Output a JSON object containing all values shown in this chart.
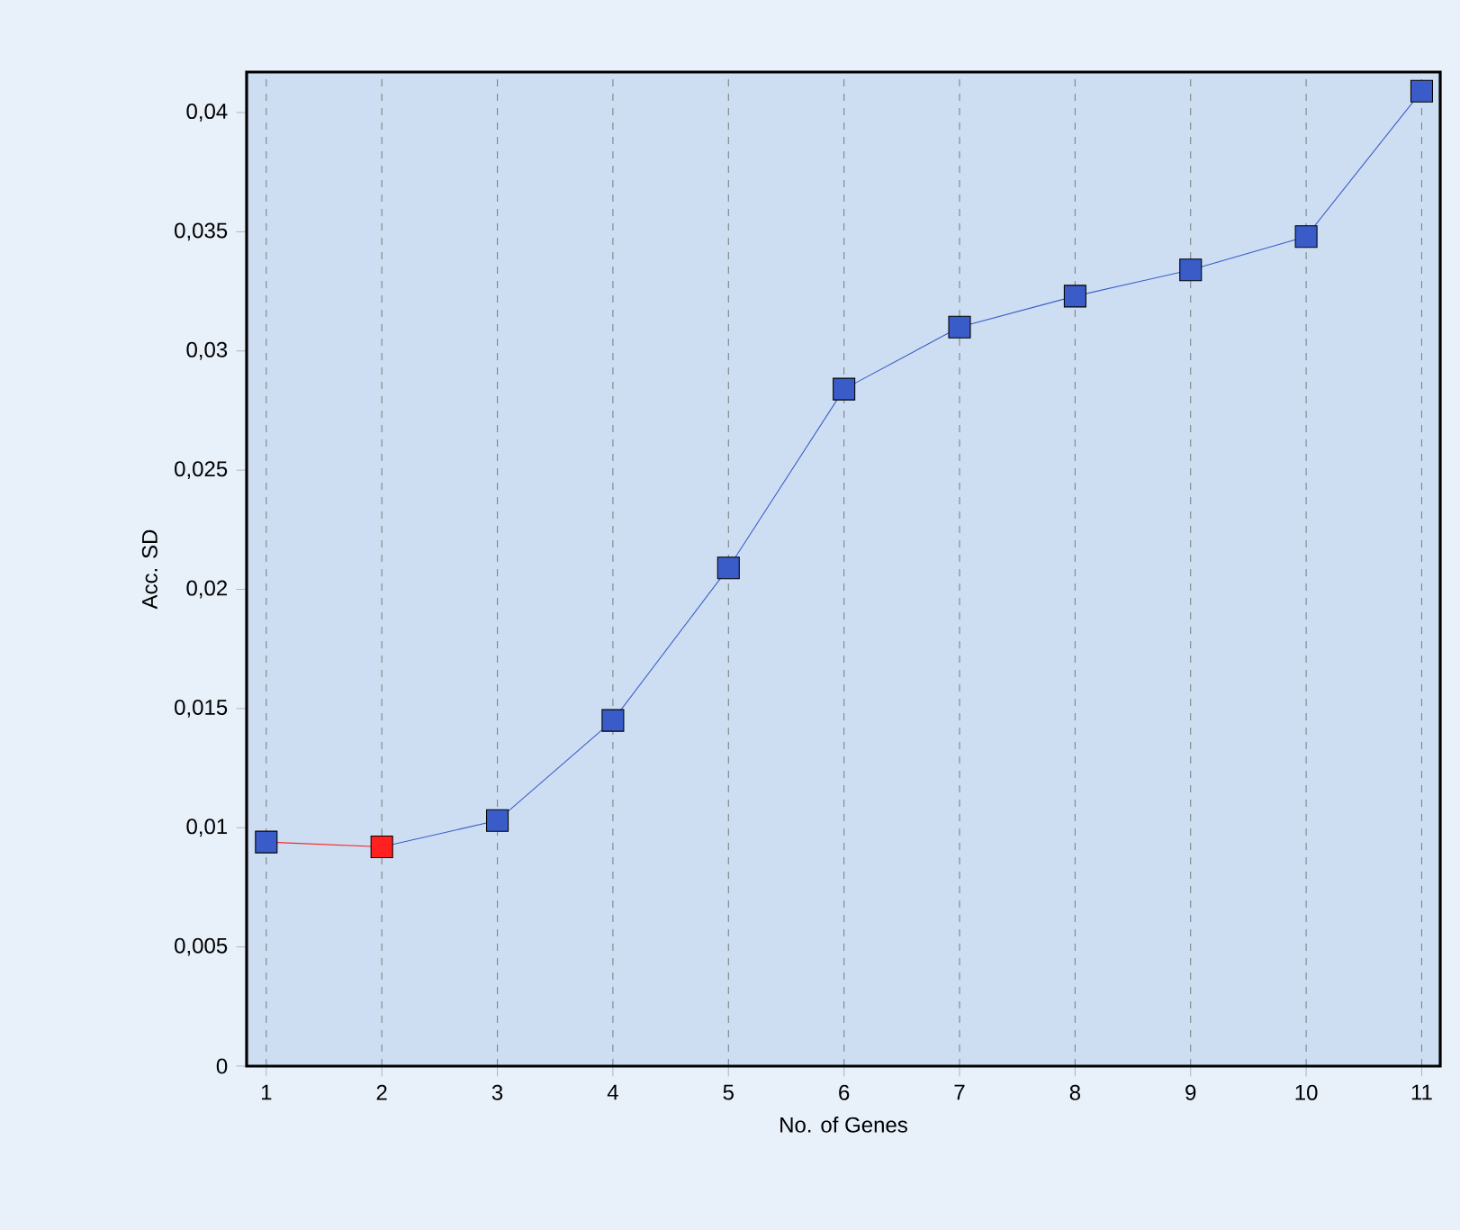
{
  "chart_data": {
    "type": "line",
    "xlabel": "No. of Genes",
    "ylabel": "Acc. SD",
    "series": [
      {
        "color": "#ff2020",
        "x": [
          1,
          2
        ],
        "colors": [
          "#3a5cc8",
          null
        ],
        "values": [
          0.0094,
          0.0092
        ]
      },
      {
        "color": "#3a5cc8",
        "x": [
          2,
          3,
          4,
          5,
          6,
          7,
          8,
          9,
          10,
          11
        ],
        "colors": [
          "#ff2020",
          "#3a5cc8",
          "#3a5cc8",
          "#3a5cc8",
          "#3a5cc8",
          "#3a5cc8",
          "#3a5cc8",
          "#3a5cc8",
          "#3a5cc8",
          "#3a5cc8"
        ],
        "values": [
          0.0092,
          0.0103,
          0.0145,
          0.0209,
          0.0284,
          0.031,
          0.0323,
          0.0334,
          0.0348,
          0.0409
        ]
      }
    ],
    "xlim": [
      0.83,
      11.16
    ],
    "ylim": [
      0,
      0.0417
    ],
    "xticks": [
      1,
      2,
      3,
      4,
      5,
      6,
      7,
      8,
      9,
      10,
      11
    ],
    "yticks": [
      0,
      {
        "value": 0.005,
        "label": "0,005"
      },
      {
        "value": 0.01,
        "label": "0,01"
      },
      {
        "value": 0.015,
        "label": "0,015"
      },
      {
        "value": 0.02,
        "label": "0,02"
      },
      {
        "value": 0.025,
        "label": "0,025"
      },
      {
        "value": 0.03,
        "label": "0,03"
      },
      {
        "value": 0.035,
        "label": "0,035"
      },
      {
        "value": 0.04,
        "label": "0,04"
      }
    ],
    "grid": "x",
    "marker": "square",
    "line_style": "solid"
  }
}
